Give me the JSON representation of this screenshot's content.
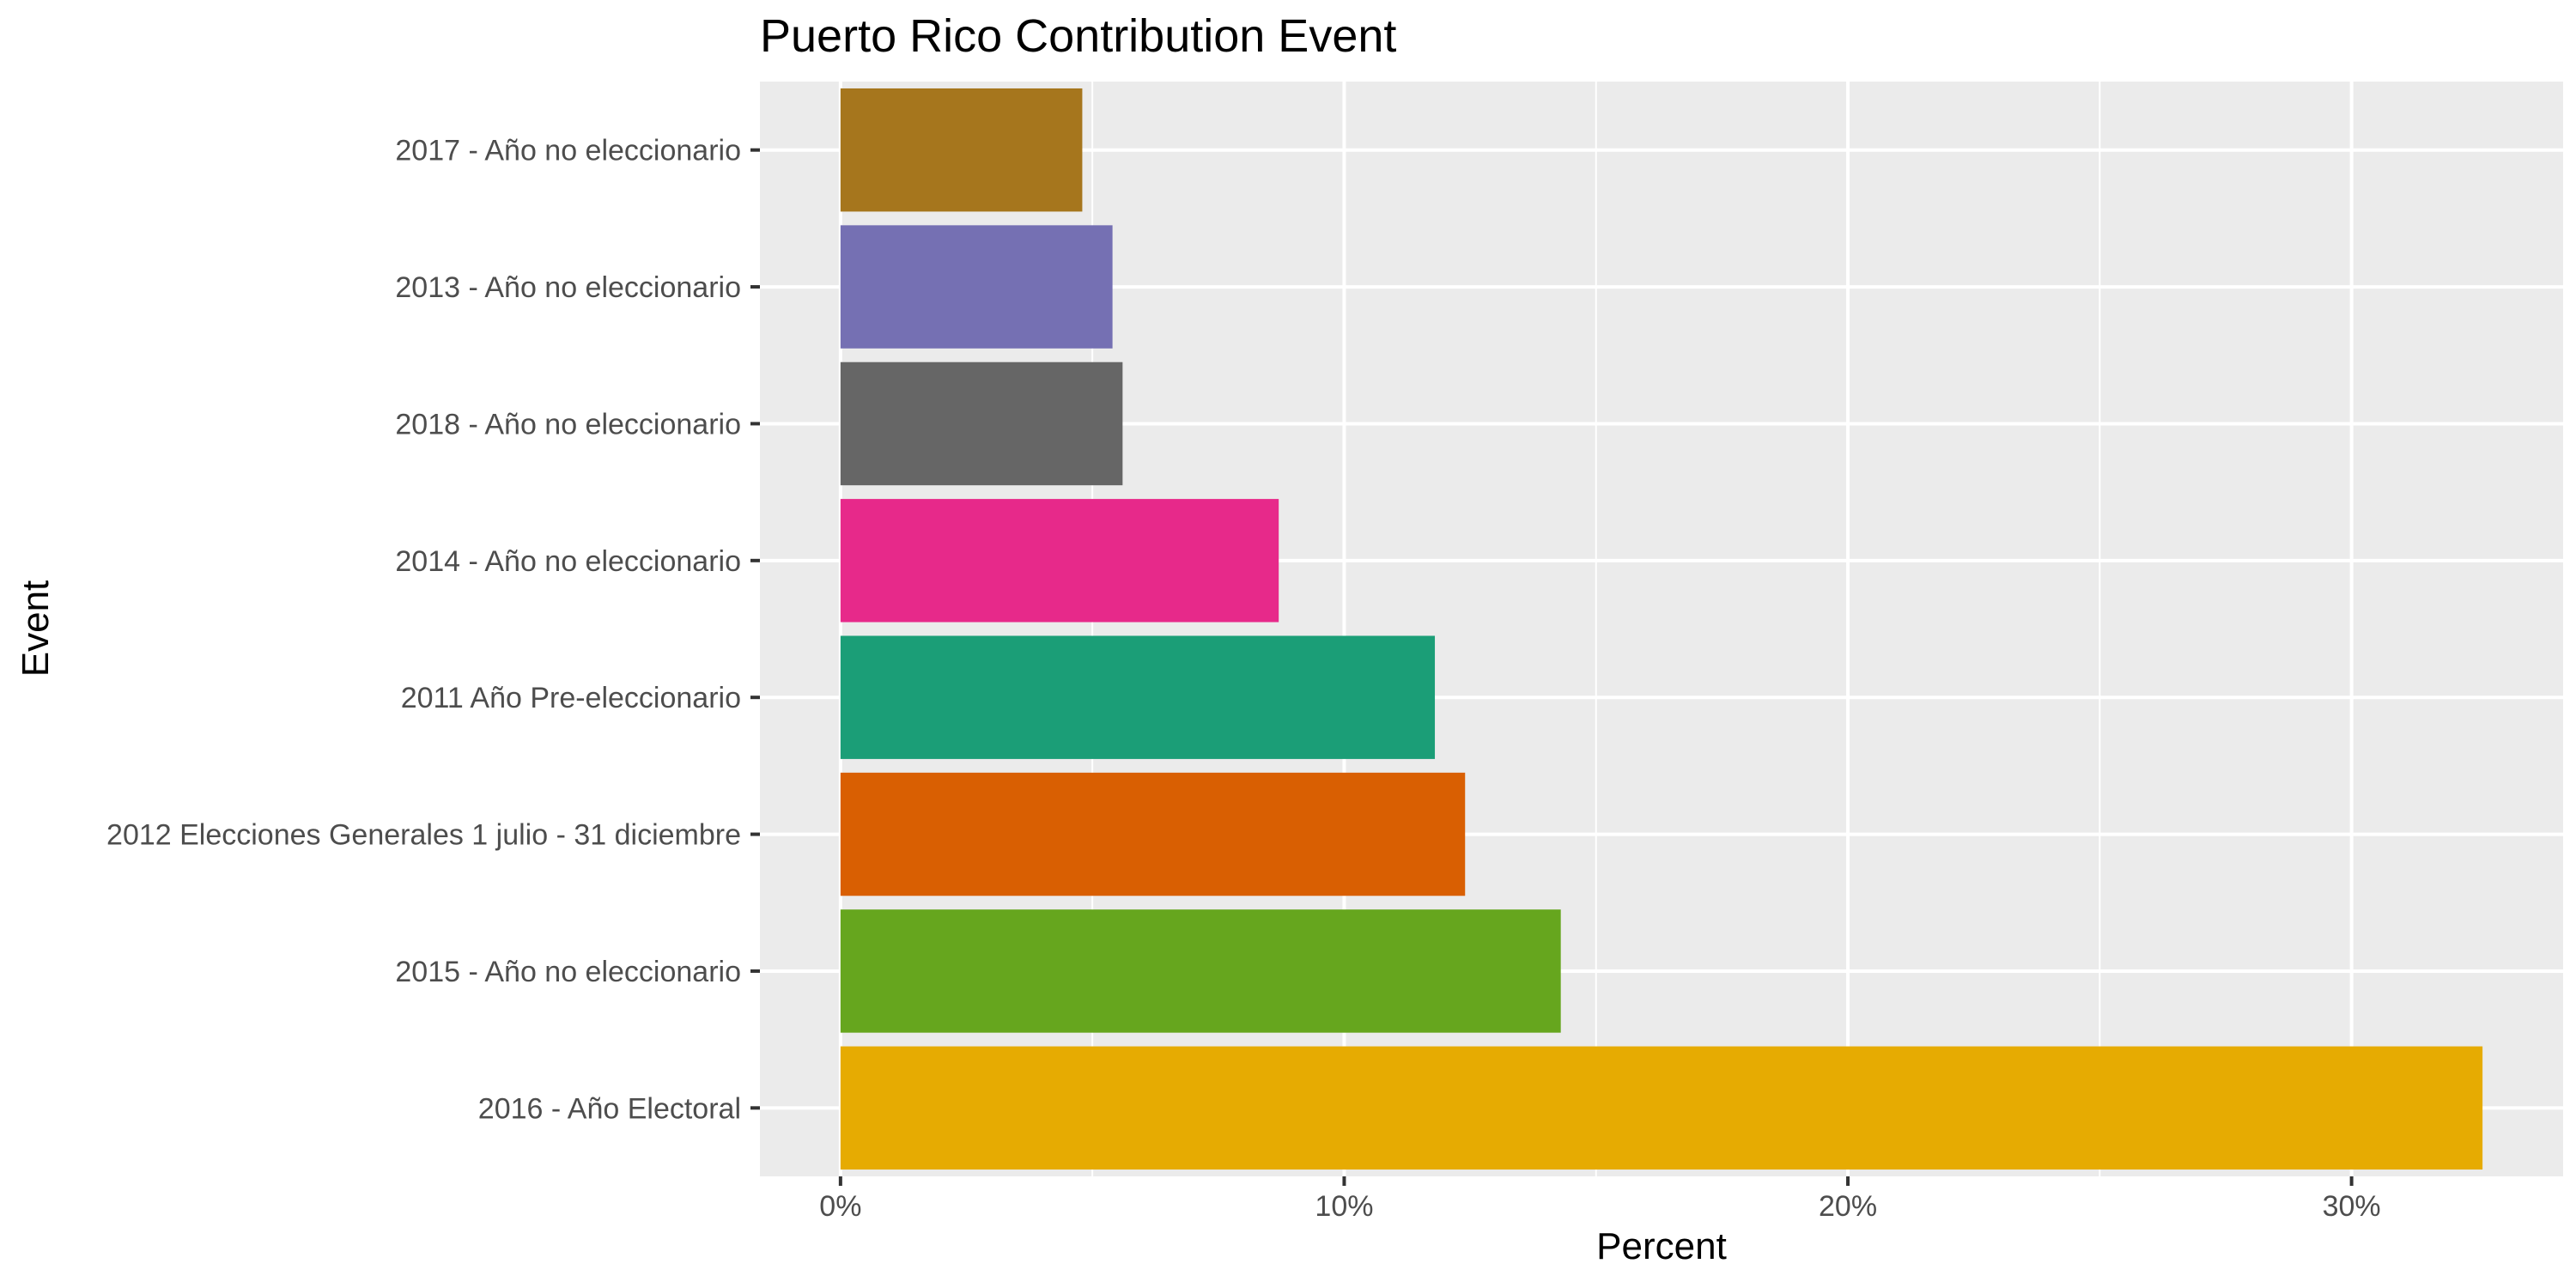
{
  "chart_data": {
    "type": "bar",
    "orientation": "horizontal",
    "title": "Puerto Rico Contribution Event",
    "xlabel": "Percent",
    "ylabel": "Event",
    "categories": [
      "2017 - Año no eleccionario",
      "2013 - Año no eleccionario",
      "2018 - Año no eleccionario",
      "2014 - Año no eleccionario",
      "2011 Año Pre-eleccionario",
      "2012 Elecciones Generales 1 julio - 31 diciembre",
      "2015 - Año no eleccionario",
      "2016 - Año Electoral"
    ],
    "values": [
      4.8,
      5.4,
      5.6,
      8.7,
      11.8,
      12.4,
      14.3,
      32.6
    ],
    "colors": [
      "#A6761D",
      "#7570B3",
      "#666666",
      "#E7298A",
      "#1B9E77",
      "#D95F02",
      "#66A61E",
      "#E6AB02"
    ],
    "xlim": [
      -1.6,
      34.2
    ],
    "xticks": [
      0,
      10,
      20,
      30
    ],
    "xtick_labels": [
      "0%",
      "10%",
      "20%",
      "30%"
    ],
    "grid": true,
    "panel_background": "#EBEBEB",
    "gridline_color": "#FFFFFF",
    "legend": "none"
  }
}
